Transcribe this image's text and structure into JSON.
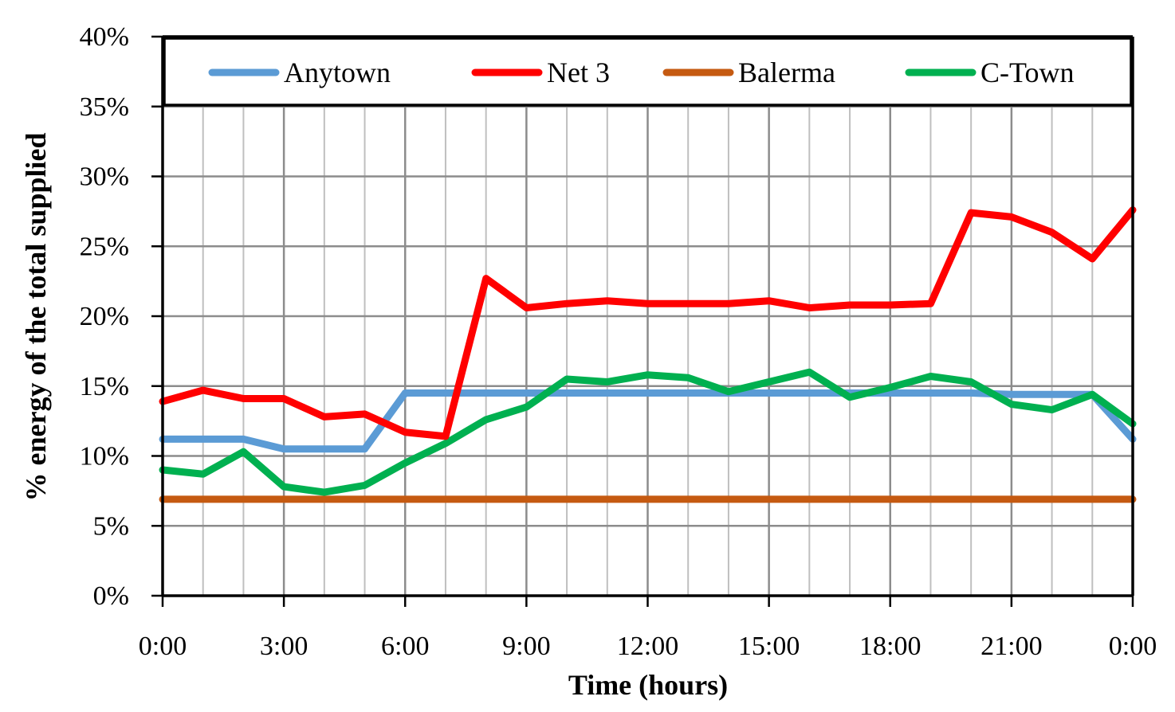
{
  "chart_data": {
    "type": "line",
    "xlabel": "Time (hours)",
    "ylabel": "% energy of the total supplied",
    "x": [
      0,
      1,
      2,
      3,
      4,
      5,
      6,
      7,
      8,
      9,
      10,
      11,
      12,
      13,
      14,
      15,
      16,
      17,
      18,
      19,
      20,
      21,
      22,
      23,
      24
    ],
    "x_tick_labels": [
      "0:00",
      "3:00",
      "6:00",
      "9:00",
      "12:00",
      "15:00",
      "18:00",
      "21:00",
      "0:00"
    ],
    "x_tick_values": [
      0,
      3,
      6,
      9,
      12,
      15,
      18,
      21,
      24
    ],
    "xlim": [
      0,
      24
    ],
    "y_tick_labels": [
      "0%",
      "5%",
      "10%",
      "15%",
      "20%",
      "25%",
      "30%",
      "35%",
      "40%"
    ],
    "y_tick_values": [
      0,
      5,
      10,
      15,
      20,
      25,
      30,
      35,
      40
    ],
    "ylim": [
      0,
      40
    ],
    "grid": true,
    "legend_position": "top",
    "series": [
      {
        "name": "Anytown",
        "color": "#5b9bd5",
        "values": [
          11.2,
          11.2,
          11.2,
          10.5,
          10.5,
          10.5,
          14.5,
          14.5,
          14.5,
          14.5,
          14.5,
          14.5,
          14.5,
          14.5,
          14.5,
          14.5,
          14.5,
          14.5,
          14.5,
          14.5,
          14.5,
          14.4,
          14.4,
          14.4,
          11.2
        ]
      },
      {
        "name": "Net 3",
        "color": "#ff0000",
        "values": [
          13.9,
          14.7,
          14.1,
          14.1,
          12.8,
          13.0,
          11.7,
          11.4,
          22.7,
          20.6,
          20.9,
          21.1,
          20.9,
          20.9,
          20.9,
          21.1,
          20.6,
          20.8,
          20.8,
          20.9,
          27.4,
          27.1,
          26.0,
          24.1,
          27.6
        ]
      },
      {
        "name": "Balerma",
        "color": "#c55a11",
        "values": [
          6.9,
          6.9,
          6.9,
          6.9,
          6.9,
          6.9,
          6.9,
          6.9,
          6.9,
          6.9,
          6.9,
          6.9,
          6.9,
          6.9,
          6.9,
          6.9,
          6.9,
          6.9,
          6.9,
          6.9,
          6.9,
          6.9,
          6.9,
          6.9,
          6.9
        ]
      },
      {
        "name": "C-Town",
        "color": "#00b050",
        "values": [
          9.0,
          8.7,
          10.3,
          7.8,
          7.4,
          7.9,
          9.5,
          10.9,
          12.6,
          13.5,
          15.5,
          15.3,
          15.8,
          15.6,
          14.6,
          15.3,
          16.0,
          14.2,
          14.9,
          15.7,
          15.3,
          13.7,
          13.3,
          14.4,
          12.3
        ]
      }
    ]
  }
}
